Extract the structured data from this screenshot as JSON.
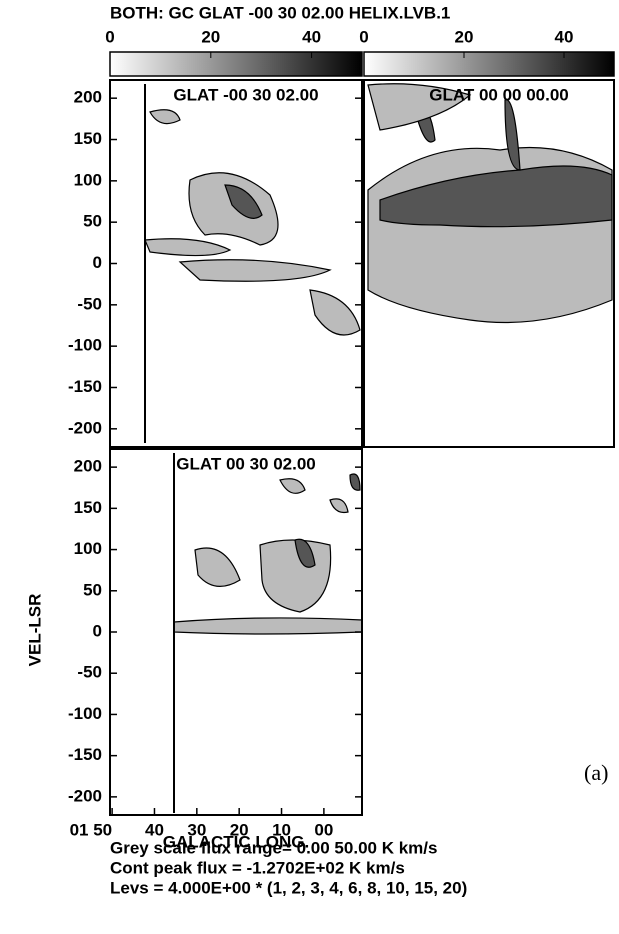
{
  "title": "BOTH: GC  GLAT -00 30 02.00  HELIX.LVB.1",
  "colorbars": [
    {
      "lim": [
        0,
        50
      ],
      "ticks": [
        0,
        20,
        40
      ]
    },
    {
      "lim": [
        0,
        50
      ],
      "ticks": [
        0,
        20,
        40
      ]
    }
  ],
  "y_label": "VEL-LSR",
  "chart_data": [
    {
      "type": "contour",
      "label": "GLAT -00 30 02.00",
      "ylim": [
        -222,
        222
      ],
      "yticks": [
        200,
        150,
        100,
        50,
        0,
        -50,
        -100,
        -150,
        -200
      ]
    },
    {
      "type": "contour",
      "label": "GLAT 00 00 00.00",
      "ylim": [
        -222,
        222
      ]
    },
    {
      "type": "contour",
      "label": "GLAT 00 30 02.00",
      "ylim": [
        -222,
        222
      ],
      "yticks": [
        200,
        150,
        100,
        50,
        0,
        -50,
        -100,
        -150,
        -200
      ],
      "xlim": [
        50.5,
        -9
      ],
      "xticks": [
        {
          "value": 50,
          "label": "01 50"
        },
        40,
        30,
        20,
        10,
        {
          "value": 0,
          "label": "00"
        }
      ],
      "xlabel": "GALACTIC LONG."
    }
  ],
  "footer": [
    "Grey scale flux range= 0.00 50.00 K km/s",
    "Cont peak flux = -1.2702E+02 K km/s",
    "Levs = 4.000E+00 * (1, 2, 3, 4, 6, 8, 10, 15, 20)"
  ],
  "figure_label": "(a)"
}
